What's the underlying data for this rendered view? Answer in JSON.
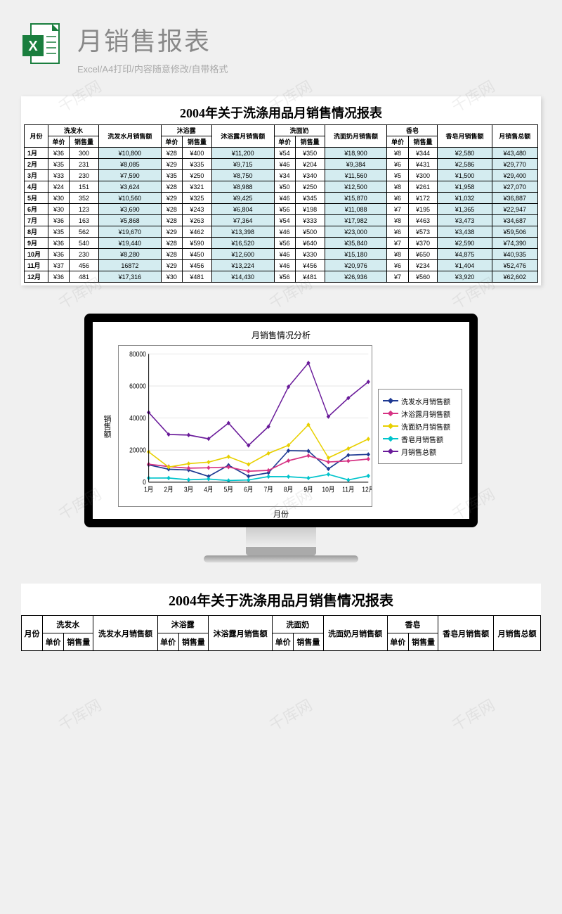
{
  "header": {
    "title": "月销售报表",
    "subtitle": "Excel/A4打印/内容随意修改/自带格式"
  },
  "report": {
    "title": "2004年关于洗涤用品月销售情况报表",
    "columns": {
      "month": "月份",
      "shampoo": "洗发水",
      "shampoo_sub": "洗发水月销售额",
      "gel": "沐浴露",
      "gel_sub": "沐浴露月销售额",
      "cleanser": "洗面奶",
      "cleanser_sub": "洗面奶月销售额",
      "soap": "香皂",
      "soap_sub": "香皂月销售额",
      "total": "月销售总额",
      "price": "单价",
      "qty": "销售量"
    },
    "rows": [
      {
        "m": "1月",
        "a1": "¥36",
        "a2": "300",
        "a3": "¥10,800",
        "b1": "¥28",
        "b2": "¥400",
        "b3": "¥11,200",
        "c1": "¥54",
        "c2": "¥350",
        "c3": "¥18,900",
        "d1": "¥8",
        "d2": "¥344",
        "d3": "¥2,580",
        "t": "¥43,480"
      },
      {
        "m": "2月",
        "a1": "¥35",
        "a2": "231",
        "a3": "¥8,085",
        "b1": "¥29",
        "b2": "¥335",
        "b3": "¥9,715",
        "c1": "¥46",
        "c2": "¥204",
        "c3": "¥9,384",
        "d1": "¥6",
        "d2": "¥431",
        "d3": "¥2,586",
        "t": "¥29,770"
      },
      {
        "m": "3月",
        "a1": "¥33",
        "a2": "230",
        "a3": "¥7,590",
        "b1": "¥35",
        "b2": "¥250",
        "b3": "¥8,750",
        "c1": "¥34",
        "c2": "¥340",
        "c3": "¥11,560",
        "d1": "¥5",
        "d2": "¥300",
        "d3": "¥1,500",
        "t": "¥29,400"
      },
      {
        "m": "4月",
        "a1": "¥24",
        "a2": "151",
        "a3": "¥3,624",
        "b1": "¥28",
        "b2": "¥321",
        "b3": "¥8,988",
        "c1": "¥50",
        "c2": "¥250",
        "c3": "¥12,500",
        "d1": "¥8",
        "d2": "¥261",
        "d3": "¥1,958",
        "t": "¥27,070"
      },
      {
        "m": "5月",
        "a1": "¥30",
        "a2": "352",
        "a3": "¥10,560",
        "b1": "¥29",
        "b2": "¥325",
        "b3": "¥9,425",
        "c1": "¥46",
        "c2": "¥345",
        "c3": "¥15,870",
        "d1": "¥6",
        "d2": "¥172",
        "d3": "¥1,032",
        "t": "¥36,887"
      },
      {
        "m": "6月",
        "a1": "¥30",
        "a2": "123",
        "a3": "¥3,690",
        "b1": "¥28",
        "b2": "¥243",
        "b3": "¥6,804",
        "c1": "¥56",
        "c2": "¥198",
        "c3": "¥11,088",
        "d1": "¥7",
        "d2": "¥195",
        "d3": "¥1,365",
        "t": "¥22,947"
      },
      {
        "m": "7月",
        "a1": "¥36",
        "a2": "163",
        "a3": "¥5,868",
        "b1": "¥28",
        "b2": "¥263",
        "b3": "¥7,364",
        "c1": "¥54",
        "c2": "¥333",
        "c3": "¥17,982",
        "d1": "¥8",
        "d2": "¥463",
        "d3": "¥3,473",
        "t": "¥34,687"
      },
      {
        "m": "8月",
        "a1": "¥35",
        "a2": "562",
        "a3": "¥19,670",
        "b1": "¥29",
        "b2": "¥462",
        "b3": "¥13,398",
        "c1": "¥46",
        "c2": "¥500",
        "c3": "¥23,000",
        "d1": "¥6",
        "d2": "¥573",
        "d3": "¥3,438",
        "t": "¥59,506"
      },
      {
        "m": "9月",
        "a1": "¥36",
        "a2": "540",
        "a3": "¥19,440",
        "b1": "¥28",
        "b2": "¥590",
        "b3": "¥16,520",
        "c1": "¥56",
        "c2": "¥640",
        "c3": "¥35,840",
        "d1": "¥7",
        "d2": "¥370",
        "d3": "¥2,590",
        "t": "¥74,390"
      },
      {
        "m": "10月",
        "a1": "¥36",
        "a2": "230",
        "a3": "¥8,280",
        "b1": "¥28",
        "b2": "¥450",
        "b3": "¥12,600",
        "c1": "¥46",
        "c2": "¥330",
        "c3": "¥15,180",
        "d1": "¥8",
        "d2": "¥650",
        "d3": "¥4,875",
        "t": "¥40,935"
      },
      {
        "m": "11月",
        "a1": "¥37",
        "a2": "456",
        "a3": "16872",
        "b1": "¥29",
        "b2": "¥456",
        "b3": "¥13,224",
        "c1": "¥46",
        "c2": "¥456",
        "c3": "¥20,976",
        "d1": "¥6",
        "d2": "¥234",
        "d3": "¥1,404",
        "t": "¥52,476"
      },
      {
        "m": "12月",
        "a1": "¥36",
        "a2": "481",
        "a3": "¥17,316",
        "b1": "¥30",
        "b2": "¥481",
        "b3": "¥14,430",
        "c1": "¥56",
        "c2": "¥481",
        "c3": "¥26,936",
        "d1": "¥7",
        "d2": "¥560",
        "d3": "¥3,920",
        "t": "¥62,602"
      }
    ]
  },
  "chart": {
    "title": "月销售情况分析",
    "ylabel": "销售额",
    "xlabel": "月份",
    "ymax": 80000,
    "ytick": 20000,
    "categories": [
      "1月",
      "2月",
      "3月",
      "4月",
      "5月",
      "6月",
      "7月",
      "8月",
      "9月",
      "10月",
      "11月",
      "12月"
    ],
    "series": [
      {
        "name": "洗发水月销售额",
        "color": "#1f3a93",
        "marker": "diamond",
        "values": [
          10800,
          8085,
          7590,
          3624,
          10560,
          3690,
          5868,
          19670,
          19440,
          8280,
          16872,
          17316
        ]
      },
      {
        "name": "沐浴露月销售额",
        "color": "#d63384",
        "marker": "square",
        "values": [
          11200,
          9715,
          8750,
          8988,
          9425,
          6804,
          7364,
          13398,
          16520,
          12600,
          13224,
          14430
        ]
      },
      {
        "name": "洗面奶月销售额",
        "color": "#e8d000",
        "marker": "triangle",
        "values": [
          18900,
          9384,
          11560,
          12500,
          15870,
          11088,
          17982,
          23000,
          35840,
          15180,
          20976,
          26936
        ]
      },
      {
        "name": "香皂月销售额",
        "color": "#00c4cc",
        "marker": "x",
        "values": [
          2580,
          2586,
          1500,
          1958,
          1032,
          1365,
          3473,
          3438,
          2590,
          4875,
          1404,
          3920
        ]
      },
      {
        "name": "月销售总额",
        "color": "#6a1b9a",
        "marker": "star",
        "values": [
          43480,
          29770,
          29400,
          27070,
          36887,
          22947,
          34687,
          59506,
          74390,
          40935,
          52476,
          62602
        ]
      }
    ]
  },
  "watermark": "千库网"
}
